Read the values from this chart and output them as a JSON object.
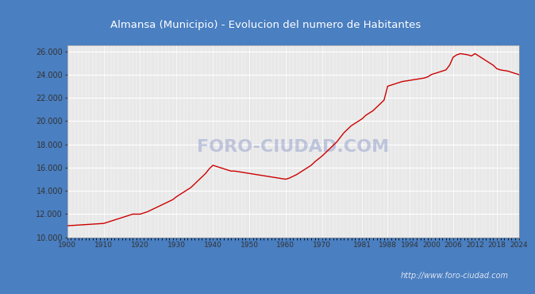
{
  "title": "Almansa (Municipio) - Evolucion del numero de Habitantes",
  "title_bg": "#4a7fc1",
  "title_color": "#ffffff",
  "watermark": "http://www.foro-ciudad.com",
  "watermark_color": "#a0aad0",
  "plot_bg": "#e8e8e8",
  "grid_color": "#ffffff",
  "line_color": "#cc0000",
  "outer_bg": "#4a7fc1",
  "ylim": [
    10000,
    26500
  ],
  "yticks": [
    10000,
    12000,
    14000,
    16000,
    18000,
    20000,
    22000,
    24000,
    26000
  ],
  "xtick_years": [
    1900,
    1910,
    1920,
    1930,
    1940,
    1950,
    1960,
    1970,
    1981,
    1988,
    1994,
    2000,
    2006,
    2012,
    2018,
    2024
  ],
  "detailed_years": [
    1900,
    1901,
    1902,
    1903,
    1904,
    1905,
    1906,
    1907,
    1908,
    1909,
    1910,
    1911,
    1912,
    1913,
    1914,
    1915,
    1916,
    1917,
    1918,
    1919,
    1920,
    1921,
    1922,
    1923,
    1924,
    1925,
    1926,
    1927,
    1928,
    1929,
    1930,
    1931,
    1932,
    1933,
    1934,
    1935,
    1936,
    1937,
    1938,
    1939,
    1940,
    1941,
    1942,
    1943,
    1944,
    1945,
    1946,
    1947,
    1948,
    1949,
    1950,
    1951,
    1952,
    1953,
    1954,
    1955,
    1956,
    1957,
    1958,
    1959,
    1960,
    1961,
    1962,
    1963,
    1964,
    1965,
    1966,
    1967,
    1968,
    1969,
    1970,
    1971,
    1972,
    1973,
    1974,
    1975,
    1976,
    1977,
    1978,
    1979,
    1980,
    1981,
    1982,
    1983,
    1984,
    1985,
    1986,
    1987,
    1988,
    1989,
    1990,
    1991,
    1992,
    1993,
    1994,
    1995,
    1996,
    1997,
    1998,
    1999,
    2000,
    2001,
    2002,
    2003,
    2004,
    2005,
    2006,
    2007,
    2008,
    2009,
    2010,
    2011,
    2012,
    2013,
    2014,
    2015,
    2016,
    2017,
    2018,
    2019,
    2020,
    2021,
    2022,
    2023,
    2024
  ],
  "detailed_pop": [
    11000,
    11020,
    11040,
    11060,
    11080,
    11100,
    11120,
    11140,
    11160,
    11180,
    11200,
    11300,
    11400,
    11500,
    11600,
    11700,
    11800,
    11900,
    12000,
    12000,
    12000,
    12100,
    12200,
    12350,
    12500,
    12650,
    12800,
    12950,
    13100,
    13250,
    13500,
    13700,
    13900,
    14100,
    14300,
    14600,
    14900,
    15200,
    15500,
    15900,
    16200,
    16100,
    16000,
    15900,
    15800,
    15700,
    15700,
    15650,
    15600,
    15550,
    15500,
    15450,
    15400,
    15350,
    15300,
    15250,
    15200,
    15150,
    15100,
    15050,
    15000,
    15100,
    15250,
    15400,
    15600,
    15800,
    16000,
    16200,
    16500,
    16750,
    17000,
    17300,
    17600,
    17900,
    18200,
    18600,
    19000,
    19300,
    19600,
    19800,
    20000,
    20200,
    20500,
    20700,
    20900,
    21200,
    21500,
    21800,
    23000,
    23100,
    23200,
    23300,
    23400,
    23450,
    23500,
    23550,
    23600,
    23650,
    23700,
    23800,
    24000,
    24100,
    24200,
    24300,
    24400,
    24800,
    25500,
    25700,
    25800,
    25750,
    25700,
    25600,
    25800,
    25600,
    25400,
    25200,
    25000,
    24800,
    24500,
    24400,
    24350,
    24300,
    24200,
    24100,
    24000
  ]
}
